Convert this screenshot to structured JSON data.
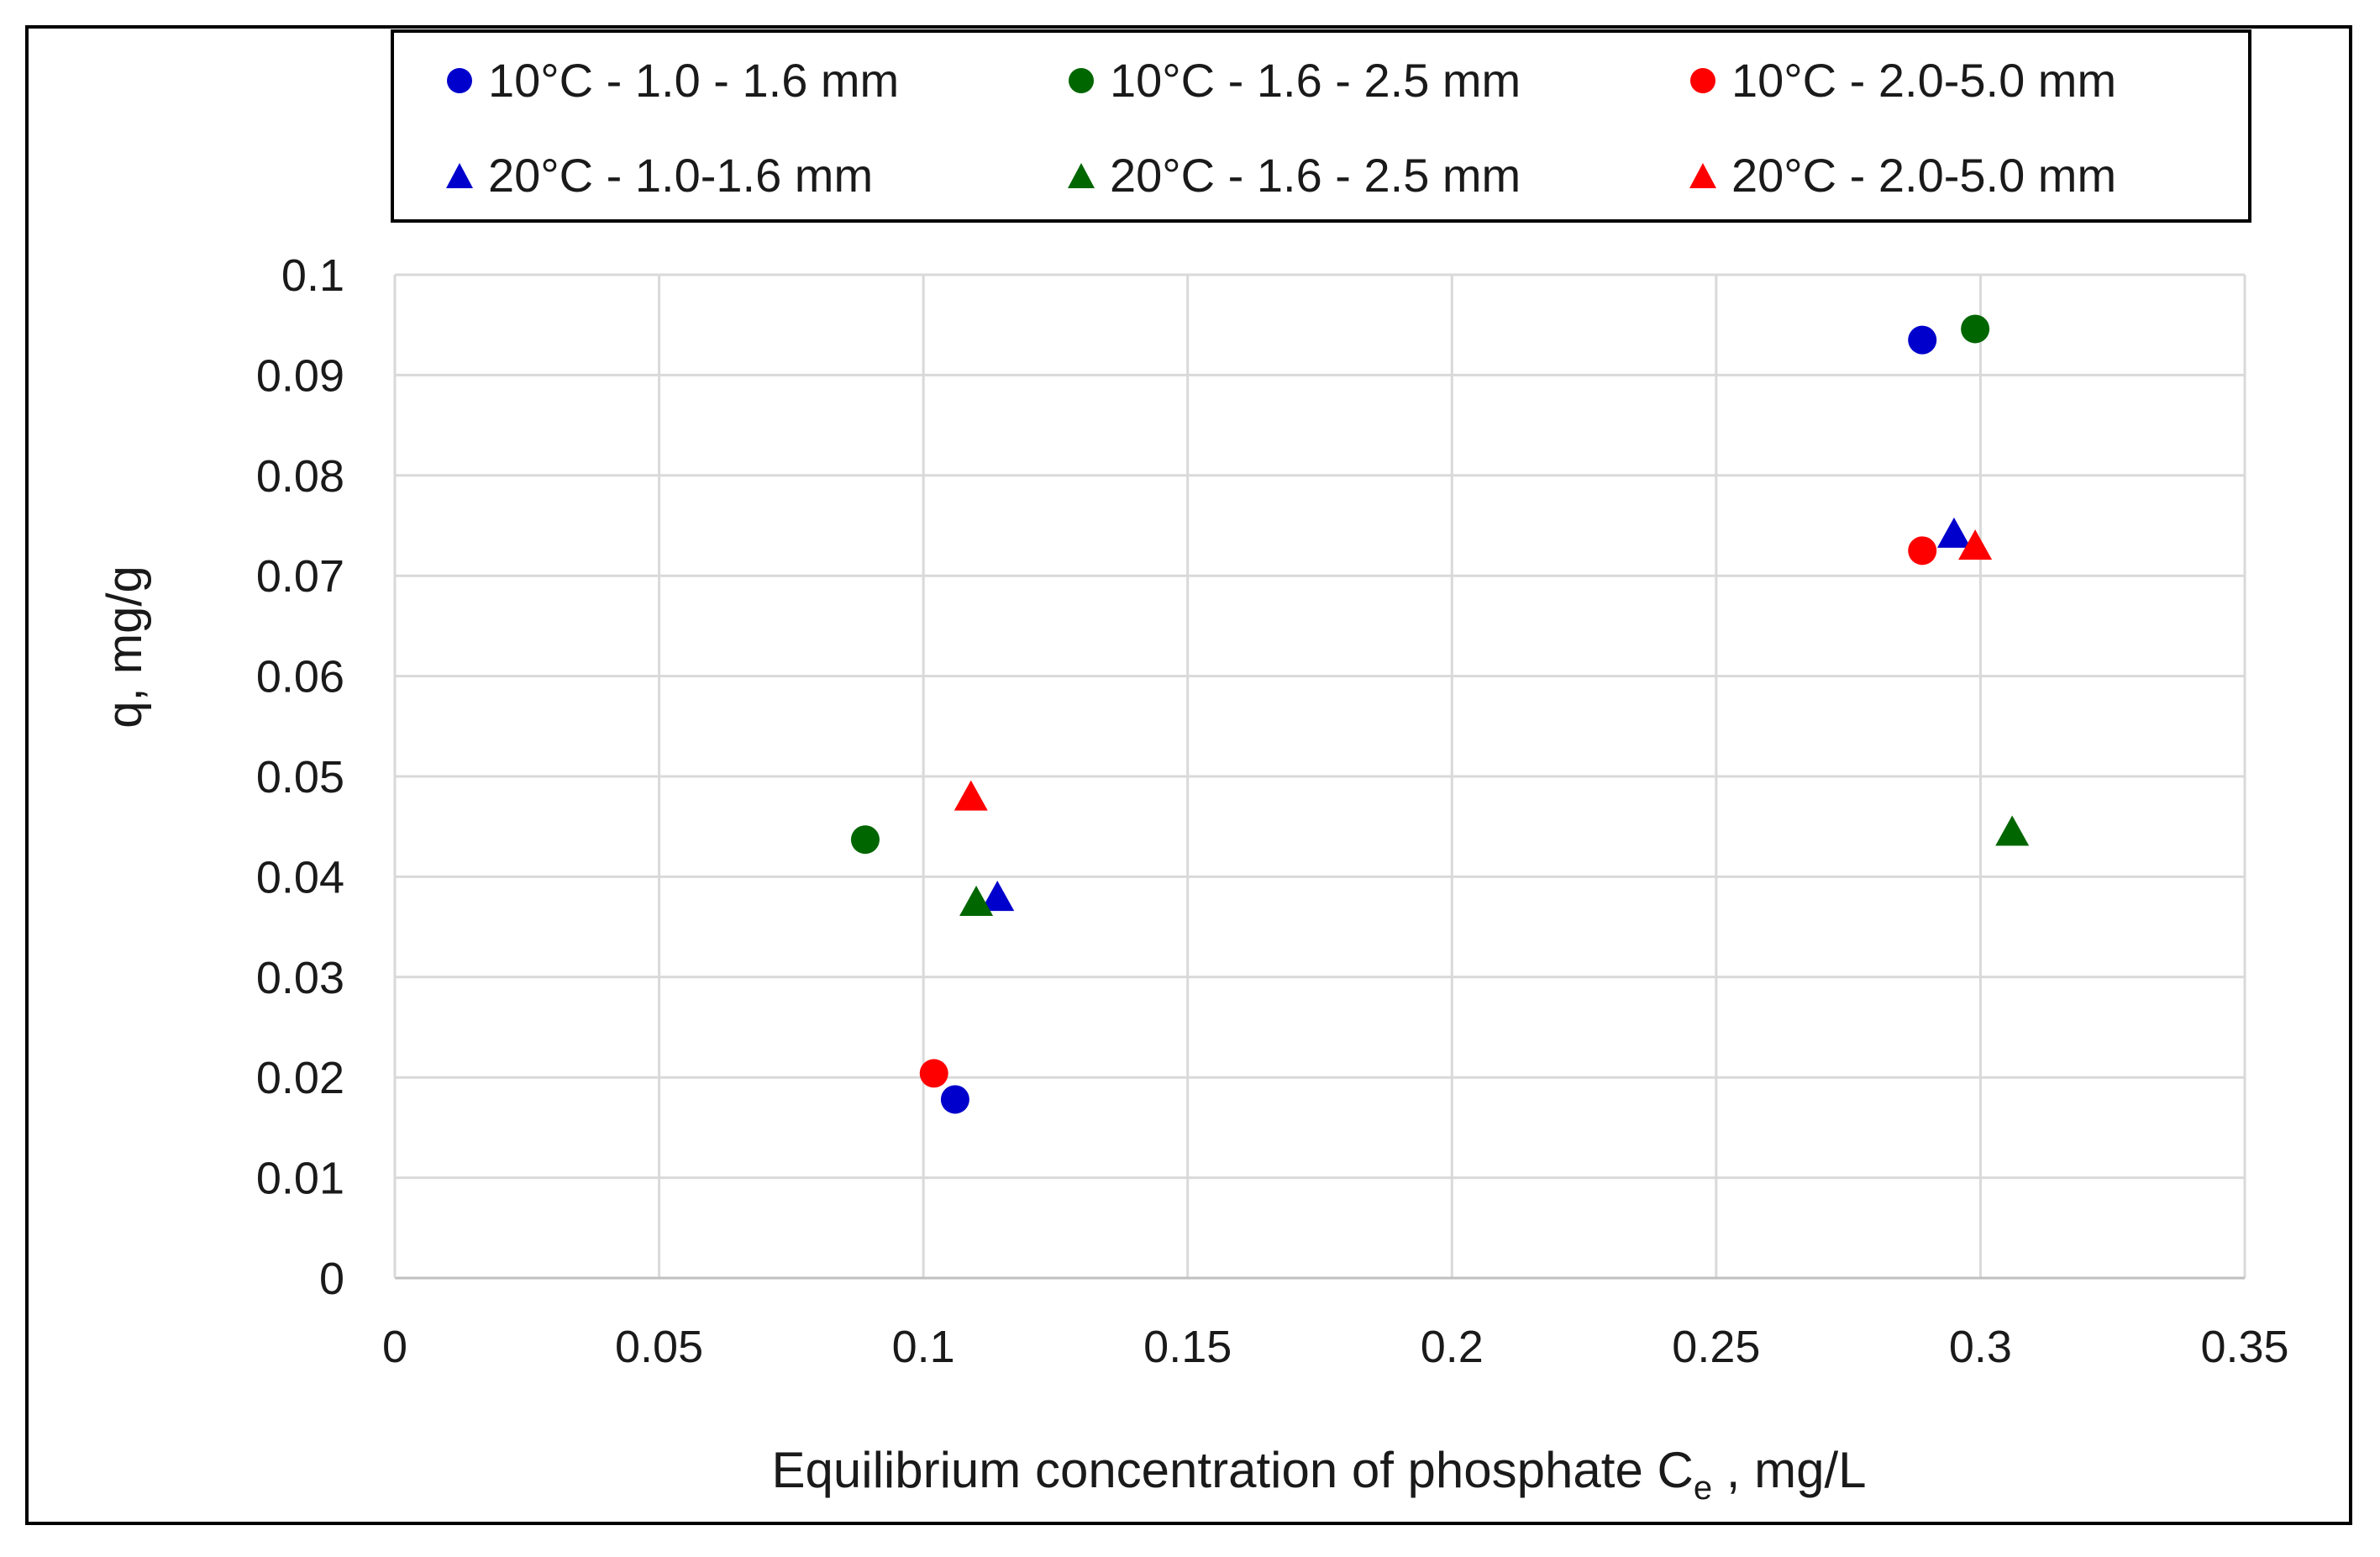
{
  "chart_data": {
    "type": "scatter",
    "title": "",
    "xlabel": "Equilibrium concentration of phosphate C",
    "xlabel_subscript": "e",
    "xlabel_suffix": " , mg/L",
    "ylabel": "q, mg/g",
    "xlim": [
      0,
      0.35
    ],
    "ylim": [
      0,
      0.1
    ],
    "x_ticks": [
      "0",
      "0.05",
      "0.1",
      "0.15",
      "0.2",
      "0.25",
      "0.3",
      "0.35"
    ],
    "y_ticks": [
      "0",
      "0.01",
      "0.02",
      "0.03",
      "0.04",
      "0.05",
      "0.06",
      "0.07",
      "0.08",
      "0.09",
      "0.1"
    ],
    "grid": true,
    "legend_position": "top",
    "series": [
      {
        "name": "10°C - 1.0 - 1.6 mm",
        "marker": "circle",
        "color": "#0000cc",
        "points": [
          {
            "x": 0.106,
            "y": 0.0178
          },
          {
            "x": 0.289,
            "y": 0.0935
          }
        ]
      },
      {
        "name": "10°C - 1.6 - 2.5 mm",
        "marker": "circle",
        "color": "#006600",
        "points": [
          {
            "x": 0.089,
            "y": 0.0437
          },
          {
            "x": 0.299,
            "y": 0.0946
          }
        ]
      },
      {
        "name": "10°C - 2.0-5.0 mm",
        "marker": "circle",
        "color": "#ff0000",
        "points": [
          {
            "x": 0.102,
            "y": 0.0204
          },
          {
            "x": 0.289,
            "y": 0.0725
          }
        ]
      },
      {
        "name": "20°C - 1.0-1.6 mm",
        "marker": "triangle",
        "color": "#0000cc",
        "points": [
          {
            "x": 0.114,
            "y": 0.0378
          },
          {
            "x": 0.295,
            "y": 0.074
          }
        ]
      },
      {
        "name": "20°C - 1.6 - 2.5 mm",
        "marker": "triangle",
        "color": "#006600",
        "points": [
          {
            "x": 0.11,
            "y": 0.0373
          },
          {
            "x": 0.306,
            "y": 0.0443
          }
        ]
      },
      {
        "name": "20°C - 2.0-5.0 mm",
        "marker": "triangle",
        "color": "#ff0000",
        "points": [
          {
            "x": 0.109,
            "y": 0.0478
          },
          {
            "x": 0.299,
            "y": 0.0728
          }
        ]
      }
    ]
  }
}
